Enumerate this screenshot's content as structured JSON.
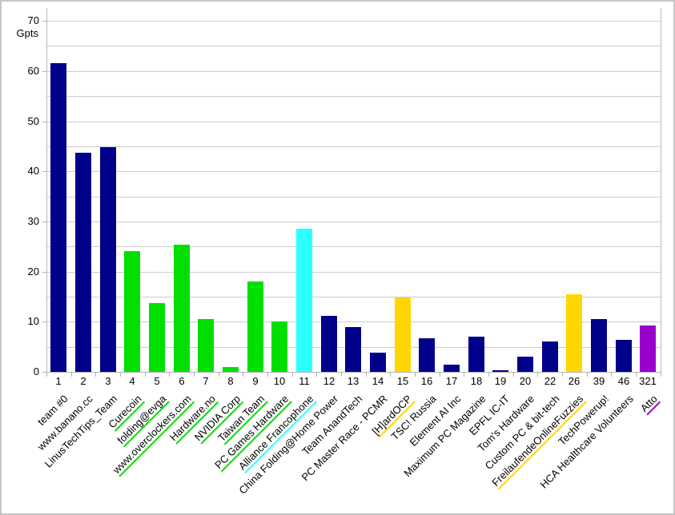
{
  "chart_data": {
    "type": "bar",
    "title": "",
    "ylabel": "Gpts",
    "xlabel": "",
    "ylim": [
      0,
      70
    ],
    "y_major_tick": 10,
    "y_minor_tick": 5,
    "grid": true,
    "legend": "none",
    "y_tick_labels": [
      "0",
      "10",
      "20",
      "30",
      "40",
      "50",
      "60",
      "70"
    ],
    "colors": {
      "navy": "#00008B",
      "green": "#00DF00",
      "cyan": "#2BFFFF",
      "yellow": "#FFD700",
      "purple": "#9900CC"
    },
    "bars": [
      {
        "rank": "1",
        "team": "team #0",
        "value": 61.5,
        "color": "navy",
        "underline": false
      },
      {
        "rank": "2",
        "team": "www.banano.cc",
        "value": 43.7,
        "color": "navy",
        "underline": false
      },
      {
        "rank": "3",
        "team": "LinusTechTips_Team",
        "value": 44.8,
        "color": "navy",
        "underline": false
      },
      {
        "rank": "4",
        "team": "Curecoin",
        "value": 24.1,
        "color": "green",
        "underline": true
      },
      {
        "rank": "5",
        "team": "folding@evga",
        "value": 13.7,
        "color": "green",
        "underline": true
      },
      {
        "rank": "6",
        "team": "www.overclockers.com",
        "value": 25.3,
        "color": "green",
        "underline": true
      },
      {
        "rank": "7",
        "team": "Hardware.no",
        "value": 10.6,
        "color": "green",
        "underline": true
      },
      {
        "rank": "8",
        "team": "NVIDIA Corp",
        "value": 1.0,
        "color": "green",
        "underline": true
      },
      {
        "rank": "9",
        "team": "Taiwan Team",
        "value": 18.0,
        "color": "green",
        "underline": true
      },
      {
        "rank": "10",
        "team": "PC Games Hardware",
        "value": 10.1,
        "color": "green",
        "underline": true
      },
      {
        "rank": "11",
        "team": "Alliance Francophone",
        "value": 28.5,
        "color": "cyan",
        "underline": true
      },
      {
        "rank": "12",
        "team": "China Folding@Home Power",
        "value": 11.2,
        "color": "navy",
        "underline": false
      },
      {
        "rank": "13",
        "team": "Team AnandTech",
        "value": 9.0,
        "color": "navy",
        "underline": false
      },
      {
        "rank": "14",
        "team": "PC Master Race - PCMR",
        "value": 3.8,
        "color": "navy",
        "underline": false
      },
      {
        "rank": "15",
        "team": "[H]ardOCP",
        "value": 14.8,
        "color": "yellow",
        "underline": true
      },
      {
        "rank": "16",
        "team": "TSC! Russia",
        "value": 6.7,
        "color": "navy",
        "underline": false
      },
      {
        "rank": "17",
        "team": "Element AI Inc",
        "value": 1.4,
        "color": "navy",
        "underline": false
      },
      {
        "rank": "18",
        "team": "Maximum PC Magazine",
        "value": 7.0,
        "color": "navy",
        "underline": false
      },
      {
        "rank": "19",
        "team": "EPFL IC-IT",
        "value": 0.3,
        "color": "navy",
        "underline": false
      },
      {
        "rank": "20",
        "team": "Tom's Hardware",
        "value": 3.0,
        "color": "navy",
        "underline": false
      },
      {
        "rank": "22",
        "team": "Custom PC & bit-tech",
        "value": 6.1,
        "color": "navy",
        "underline": false
      },
      {
        "rank": "26",
        "team": "FreilaufendeOnlineFuzzies",
        "value": 15.5,
        "color": "yellow",
        "underline": true
      },
      {
        "rank": "39",
        "team": "TechPowerup!",
        "value": 10.5,
        "color": "navy",
        "underline": false
      },
      {
        "rank": "46",
        "team": "HCA Healthcare Volunteers",
        "value": 6.3,
        "color": "navy",
        "underline": false
      },
      {
        "rank": "321",
        "team": "Atto",
        "value": 9.2,
        "color": "purple",
        "underline": true
      }
    ]
  }
}
